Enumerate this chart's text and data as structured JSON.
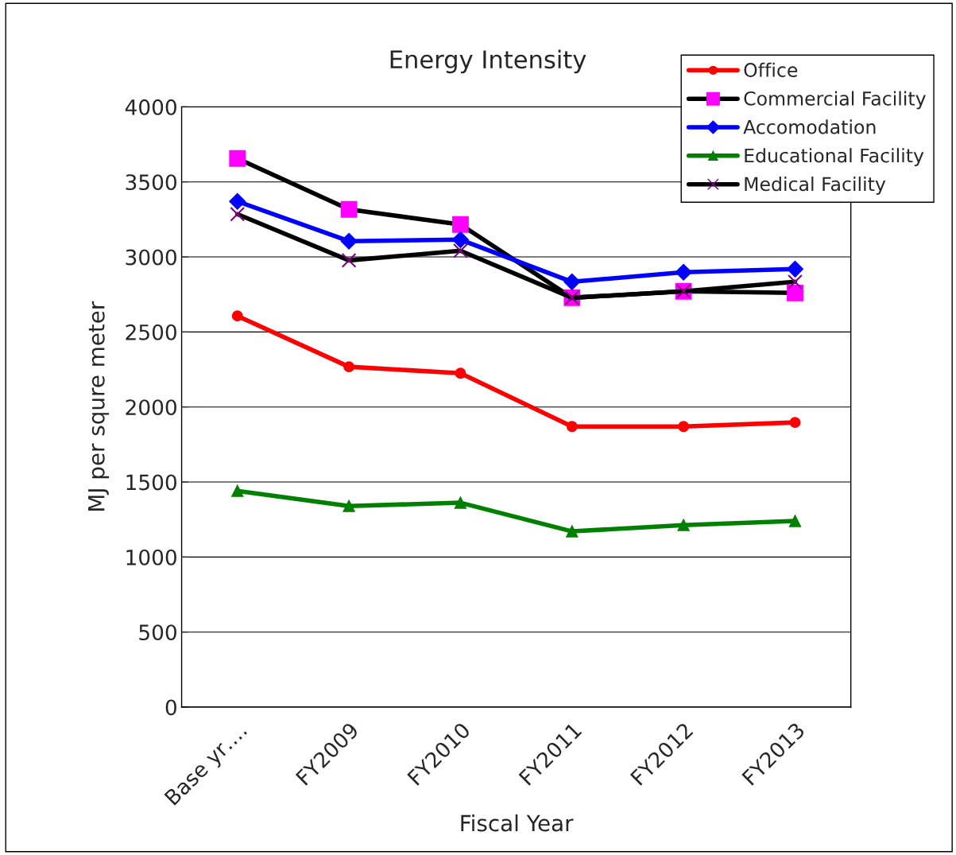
{
  "chart_data": {
    "type": "line",
    "title": "Energy Intensity",
    "xlabel": "Fiscal Year",
    "ylabel": "MJ per squre meter",
    "categories": [
      "Base yr….",
      "FY2009",
      "FY2010",
      "FY2011",
      "FY2012",
      "FY2013"
    ],
    "ylim": [
      0,
      4000
    ],
    "yticks": [
      0,
      500,
      1000,
      1500,
      2000,
      2500,
      3000,
      3500,
      4000
    ],
    "grid": "y",
    "legend": "top right",
    "series": [
      {
        "name": "Office",
        "color": "#ff0000",
        "marker": "circle",
        "values": [
          2607,
          2268,
          2225,
          1870,
          1870,
          1897
        ]
      },
      {
        "name": "Commercial Facility",
        "color": "#000000",
        "colors": [
          "#ff00ff",
          "#ff00ff",
          "#ff00ff",
          "#ff00ff",
          "#ff00ff",
          "#ff00ff"
        ],
        "marker": "square",
        "values": [
          3656,
          3317,
          3216,
          2728,
          2771,
          2760
        ]
      },
      {
        "name": "Accomodation",
        "color": "#0000ff",
        "marker": "diamond",
        "values": [
          3370,
          3105,
          3115,
          2834,
          2898,
          2919
        ]
      },
      {
        "name": "Educational Facility",
        "color": "#008000",
        "marker": "triangle",
        "values": [
          1441,
          1340,
          1362,
          1171,
          1213,
          1240
        ]
      },
      {
        "name": "Medical Facility",
        "color": "#000000",
        "colors": [
          "#800080",
          "#800080",
          "#800080",
          "#800080",
          "#800080",
          "#800080"
        ],
        "marker": "cross",
        "values": [
          3285,
          2977,
          3041,
          2728,
          2771,
          2834
        ]
      }
    ]
  }
}
